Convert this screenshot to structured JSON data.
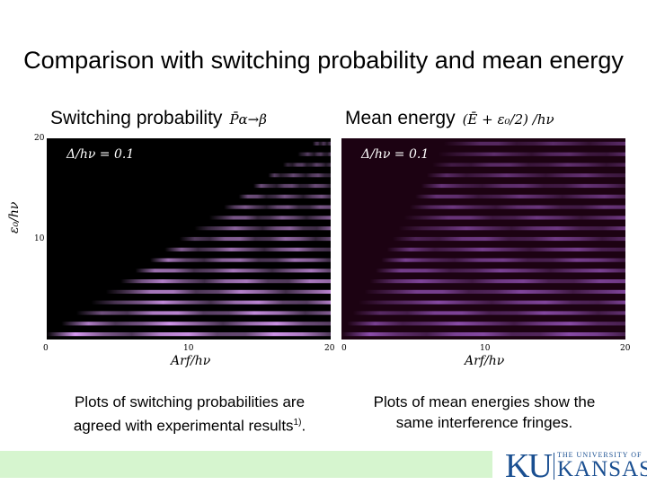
{
  "title": "Comparison with switching probability and mean energy",
  "left_panel": {
    "heading": "Switching probability",
    "formula": "P̄α→β",
    "annotation": "Δ/hν = 0.1"
  },
  "right_panel": {
    "heading": "Mean energy",
    "formula": "(Ē + ε₀/2) /hν",
    "annotation": "Δ/hν = 0.1"
  },
  "axes": {
    "xlabel": "Arf/hν",
    "ylabel": "ε₀/hν",
    "y_ticks": [
      "20",
      "10"
    ],
    "x_ticks": [
      "0",
      "10",
      "20"
    ]
  },
  "captions": {
    "left_line1": "Plots of switching probabilities are",
    "left_line2": "agreed with experimental results",
    "left_ref": "1)",
    "left_end": ".",
    "right_line1": "Plots of mean energies show the",
    "right_line2": "same interference fringes."
  },
  "logo": {
    "initials": "KU",
    "small": "THE UNIVERSITY OF",
    "name": "KANSAS"
  },
  "colors": {
    "plot_bg_left": "#000000",
    "plot_bg_right": "#1c0212",
    "fringe": "#d38cf0",
    "footer": "#d6f5cf",
    "logo": "#1a4f91"
  }
}
